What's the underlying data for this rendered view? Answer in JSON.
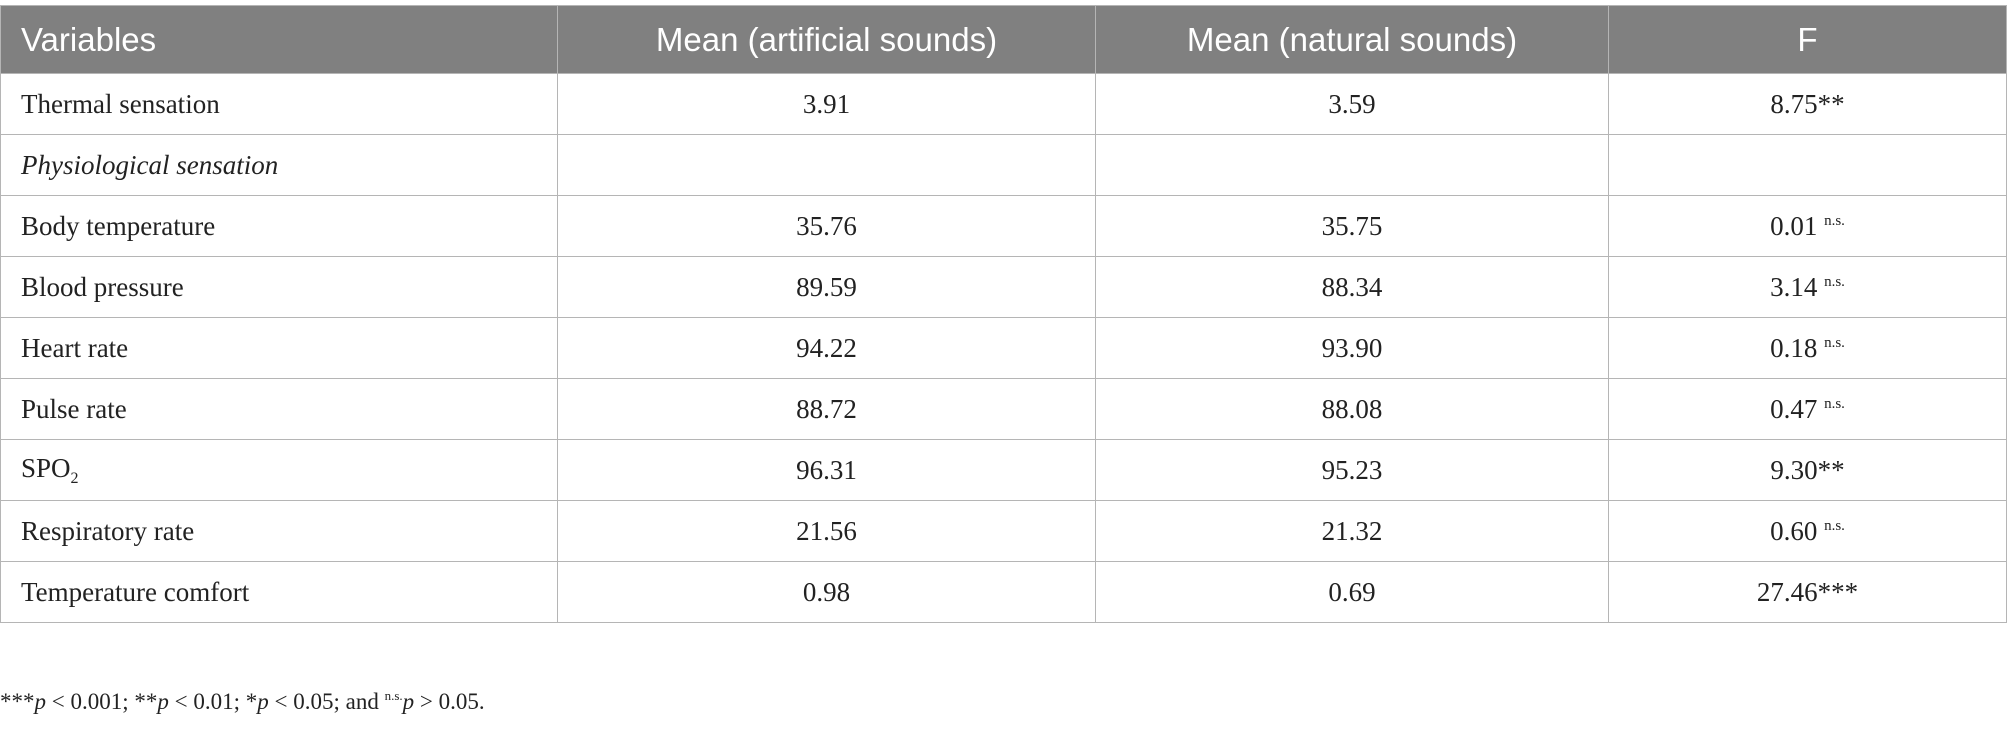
{
  "table": {
    "header": [
      "Variables",
      "Mean (artificial sounds)",
      "Mean (natural sounds)",
      "F"
    ],
    "rows": [
      {
        "label": "Thermal sensation",
        "artificial": "3.91",
        "natural": "3.59",
        "f": "8.75**"
      },
      {
        "label": "Physiological sensation",
        "section": true
      },
      {
        "label": "Body temperature",
        "artificial": "35.76",
        "natural": "35.75",
        "f": "0.01",
        "f_sup": "n.s."
      },
      {
        "label": "Blood pressure",
        "artificial": "89.59",
        "natural": "88.34",
        "f": "3.14",
        "f_sup": "n.s."
      },
      {
        "label": "Heart rate",
        "artificial": "94.22",
        "natural": "93.90",
        "f": "0.18",
        "f_sup": "n.s."
      },
      {
        "label": "Pulse rate",
        "artificial": "88.72",
        "natural": "88.08",
        "f": "0.47",
        "f_sup": "n.s."
      },
      {
        "label": "SPO",
        "label_sub": "2",
        "artificial": "96.31",
        "natural": "95.23",
        "f": "9.30**"
      },
      {
        "label": "Respiratory rate",
        "artificial": "21.56",
        "natural": "21.32",
        "f": "0.60",
        "f_sup": "n.s."
      },
      {
        "label": "Temperature comfort",
        "artificial": "0.98",
        "natural": "0.69",
        "f": "27.46***"
      }
    ]
  },
  "footnote": [
    {
      "text": "***"
    },
    {
      "text": "p",
      "italic": true
    },
    {
      "text": " < 0.001; **"
    },
    {
      "text": "p",
      "italic": true
    },
    {
      "text": " < 0.01; *"
    },
    {
      "text": "p",
      "italic": true
    },
    {
      "text": " < 0.05; and "
    },
    {
      "text": "n.s.",
      "sup": true
    },
    {
      "text": "p",
      "italic": true
    },
    {
      "text": " > 0.05."
    }
  ]
}
